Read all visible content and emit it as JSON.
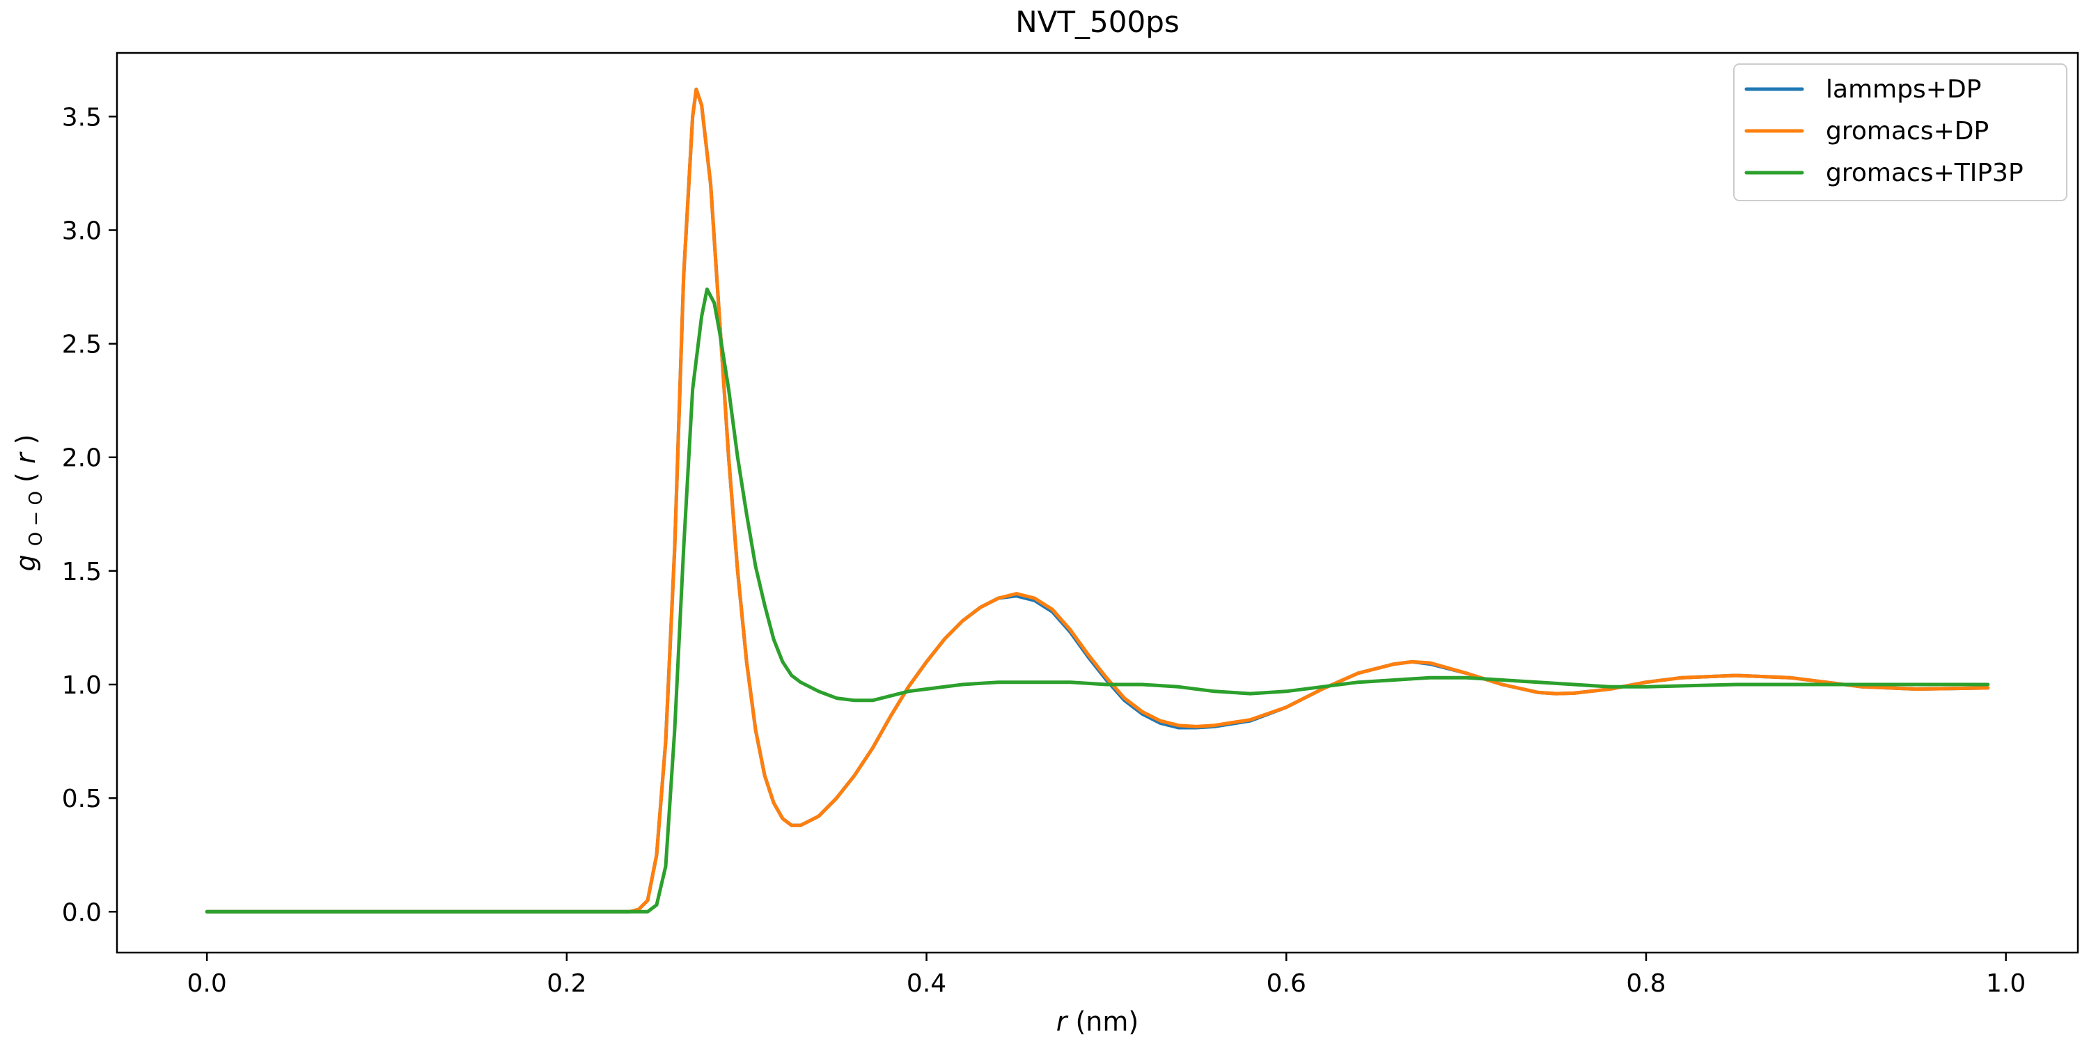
{
  "chart_data": {
    "type": "line",
    "title": "NVT_500ps",
    "xlabel": "r (nm)",
    "ylabel": "g O−O (r)",
    "xlim": [
      -0.05,
      1.04
    ],
    "ylim": [
      -0.18,
      3.78
    ],
    "xticks": [
      0.0,
      0.2,
      0.4,
      0.6,
      0.8,
      1.0
    ],
    "xtick_labels": [
      "0.0",
      "0.2",
      "0.4",
      "0.6",
      "0.8",
      "1.0"
    ],
    "yticks": [
      0.0,
      0.5,
      1.0,
      1.5,
      2.0,
      2.5,
      3.0,
      3.5
    ],
    "ytick_labels": [
      "0.0",
      "0.5",
      "1.0",
      "1.5",
      "2.0",
      "2.5",
      "3.0",
      "3.5"
    ],
    "grid": false,
    "legend_position": "top-right",
    "series": [
      {
        "name": "lammps+DP",
        "color": "#1f77b4",
        "points": [
          [
            0.0,
            0.0
          ],
          [
            0.1,
            0.0
          ],
          [
            0.2,
            0.0
          ],
          [
            0.235,
            0.0
          ],
          [
            0.24,
            0.01
          ],
          [
            0.245,
            0.05
          ],
          [
            0.25,
            0.25
          ],
          [
            0.255,
            0.75
          ],
          [
            0.26,
            1.6
          ],
          [
            0.265,
            2.8
          ],
          [
            0.27,
            3.5
          ],
          [
            0.272,
            3.62
          ],
          [
            0.275,
            3.55
          ],
          [
            0.28,
            3.2
          ],
          [
            0.285,
            2.6
          ],
          [
            0.29,
            2.0
          ],
          [
            0.295,
            1.5
          ],
          [
            0.3,
            1.1
          ],
          [
            0.305,
            0.8
          ],
          [
            0.31,
            0.6
          ],
          [
            0.315,
            0.48
          ],
          [
            0.32,
            0.41
          ],
          [
            0.325,
            0.38
          ],
          [
            0.33,
            0.38
          ],
          [
            0.34,
            0.42
          ],
          [
            0.35,
            0.5
          ],
          [
            0.36,
            0.6
          ],
          [
            0.37,
            0.72
          ],
          [
            0.38,
            0.86
          ],
          [
            0.39,
            0.99
          ],
          [
            0.4,
            1.1
          ],
          [
            0.41,
            1.2
          ],
          [
            0.42,
            1.28
          ],
          [
            0.43,
            1.34
          ],
          [
            0.44,
            1.38
          ],
          [
            0.45,
            1.39
          ],
          [
            0.46,
            1.37
          ],
          [
            0.47,
            1.32
          ],
          [
            0.48,
            1.23
          ],
          [
            0.49,
            1.12
          ],
          [
            0.5,
            1.02
          ],
          [
            0.51,
            0.93
          ],
          [
            0.52,
            0.87
          ],
          [
            0.53,
            0.83
          ],
          [
            0.54,
            0.81
          ],
          [
            0.55,
            0.81
          ],
          [
            0.56,
            0.815
          ],
          [
            0.58,
            0.84
          ],
          [
            0.6,
            0.9
          ],
          [
            0.62,
            0.98
          ],
          [
            0.64,
            1.05
          ],
          [
            0.66,
            1.09
          ],
          [
            0.67,
            1.1
          ],
          [
            0.68,
            1.09
          ],
          [
            0.7,
            1.05
          ],
          [
            0.72,
            1.0
          ],
          [
            0.74,
            0.965
          ],
          [
            0.75,
            0.96
          ],
          [
            0.76,
            0.962
          ],
          [
            0.78,
            0.98
          ],
          [
            0.8,
            1.01
          ],
          [
            0.82,
            1.03
          ],
          [
            0.85,
            1.04
          ],
          [
            0.88,
            1.03
          ],
          [
            0.9,
            1.01
          ],
          [
            0.92,
            0.99
          ],
          [
            0.95,
            0.98
          ],
          [
            0.99,
            0.985
          ]
        ]
      },
      {
        "name": "gromacs+DP",
        "color": "#ff7f0e",
        "points": [
          [
            0.0,
            0.0
          ],
          [
            0.1,
            0.0
          ],
          [
            0.2,
            0.0
          ],
          [
            0.235,
            0.0
          ],
          [
            0.24,
            0.01
          ],
          [
            0.245,
            0.05
          ],
          [
            0.25,
            0.25
          ],
          [
            0.255,
            0.75
          ],
          [
            0.26,
            1.6
          ],
          [
            0.265,
            2.8
          ],
          [
            0.27,
            3.5
          ],
          [
            0.272,
            3.62
          ],
          [
            0.275,
            3.55
          ],
          [
            0.28,
            3.2
          ],
          [
            0.285,
            2.6
          ],
          [
            0.29,
            2.0
          ],
          [
            0.295,
            1.5
          ],
          [
            0.3,
            1.1
          ],
          [
            0.305,
            0.8
          ],
          [
            0.31,
            0.6
          ],
          [
            0.315,
            0.48
          ],
          [
            0.32,
            0.41
          ],
          [
            0.325,
            0.38
          ],
          [
            0.33,
            0.38
          ],
          [
            0.34,
            0.42
          ],
          [
            0.35,
            0.5
          ],
          [
            0.36,
            0.6
          ],
          [
            0.37,
            0.72
          ],
          [
            0.38,
            0.86
          ],
          [
            0.39,
            0.99
          ],
          [
            0.4,
            1.1
          ],
          [
            0.41,
            1.2
          ],
          [
            0.42,
            1.28
          ],
          [
            0.43,
            1.34
          ],
          [
            0.44,
            1.38
          ],
          [
            0.45,
            1.4
          ],
          [
            0.46,
            1.38
          ],
          [
            0.47,
            1.33
          ],
          [
            0.48,
            1.24
          ],
          [
            0.49,
            1.13
          ],
          [
            0.5,
            1.03
          ],
          [
            0.51,
            0.94
          ],
          [
            0.52,
            0.88
          ],
          [
            0.53,
            0.84
          ],
          [
            0.54,
            0.82
          ],
          [
            0.55,
            0.815
          ],
          [
            0.56,
            0.82
          ],
          [
            0.58,
            0.845
          ],
          [
            0.6,
            0.9
          ],
          [
            0.62,
            0.98
          ],
          [
            0.64,
            1.05
          ],
          [
            0.66,
            1.09
          ],
          [
            0.67,
            1.1
          ],
          [
            0.68,
            1.095
          ],
          [
            0.7,
            1.05
          ],
          [
            0.72,
            1.0
          ],
          [
            0.74,
            0.965
          ],
          [
            0.75,
            0.96
          ],
          [
            0.76,
            0.962
          ],
          [
            0.78,
            0.98
          ],
          [
            0.8,
            1.01
          ],
          [
            0.82,
            1.03
          ],
          [
            0.85,
            1.04
          ],
          [
            0.88,
            1.03
          ],
          [
            0.9,
            1.01
          ],
          [
            0.92,
            0.99
          ],
          [
            0.95,
            0.98
          ],
          [
            0.99,
            0.985
          ]
        ]
      },
      {
        "name": "gromacs+TIP3P",
        "color": "#2ca02c",
        "points": [
          [
            0.0,
            0.0
          ],
          [
            0.1,
            0.0
          ],
          [
            0.2,
            0.0
          ],
          [
            0.245,
            0.0
          ],
          [
            0.25,
            0.03
          ],
          [
            0.255,
            0.2
          ],
          [
            0.26,
            0.8
          ],
          [
            0.265,
            1.6
          ],
          [
            0.27,
            2.3
          ],
          [
            0.275,
            2.62
          ],
          [
            0.278,
            2.74
          ],
          [
            0.282,
            2.68
          ],
          [
            0.285,
            2.55
          ],
          [
            0.29,
            2.3
          ],
          [
            0.295,
            2.0
          ],
          [
            0.3,
            1.75
          ],
          [
            0.305,
            1.52
          ],
          [
            0.31,
            1.35
          ],
          [
            0.315,
            1.2
          ],
          [
            0.32,
            1.1
          ],
          [
            0.325,
            1.04
          ],
          [
            0.33,
            1.01
          ],
          [
            0.34,
            0.97
          ],
          [
            0.35,
            0.94
          ],
          [
            0.36,
            0.93
          ],
          [
            0.37,
            0.93
          ],
          [
            0.38,
            0.95
          ],
          [
            0.39,
            0.97
          ],
          [
            0.4,
            0.98
          ],
          [
            0.42,
            1.0
          ],
          [
            0.44,
            1.01
          ],
          [
            0.46,
            1.01
          ],
          [
            0.48,
            1.01
          ],
          [
            0.5,
            1.0
          ],
          [
            0.52,
            1.0
          ],
          [
            0.54,
            0.99
          ],
          [
            0.56,
            0.97
          ],
          [
            0.58,
            0.96
          ],
          [
            0.6,
            0.97
          ],
          [
            0.62,
            0.99
          ],
          [
            0.64,
            1.01
          ],
          [
            0.66,
            1.02
          ],
          [
            0.68,
            1.03
          ],
          [
            0.7,
            1.03
          ],
          [
            0.72,
            1.02
          ],
          [
            0.74,
            1.01
          ],
          [
            0.76,
            1.0
          ],
          [
            0.78,
            0.99
          ],
          [
            0.8,
            0.99
          ],
          [
            0.85,
            1.0
          ],
          [
            0.9,
            1.0
          ],
          [
            0.95,
            1.0
          ],
          [
            0.99,
            1.0
          ]
        ]
      }
    ]
  }
}
